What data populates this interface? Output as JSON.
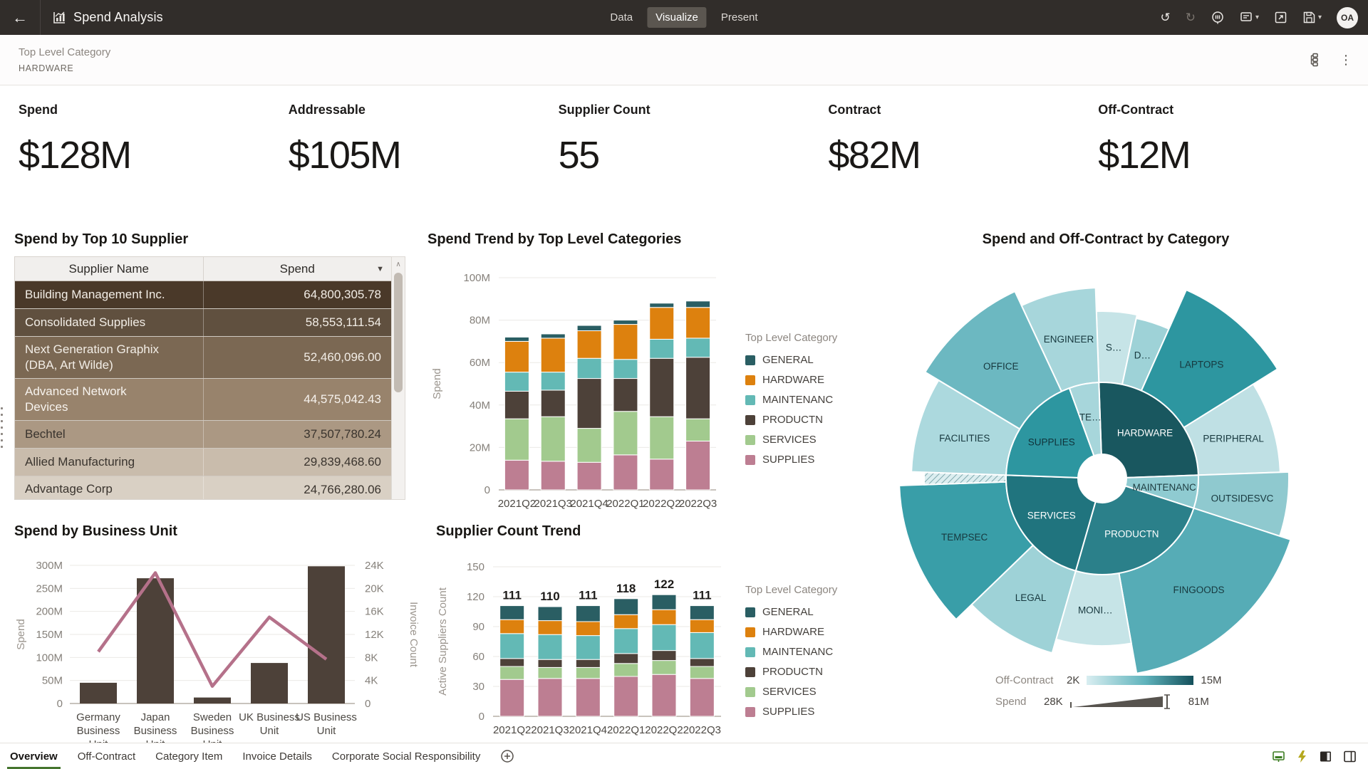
{
  "topbar": {
    "title": "Spend Analysis",
    "tabs": [
      {
        "label": "Data",
        "active": false
      },
      {
        "label": "Visualize",
        "active": true
      },
      {
        "label": "Present",
        "active": false
      }
    ],
    "avatar": "OA"
  },
  "icons": {
    "back": "←",
    "undo": "↺",
    "redo": "↻",
    "caret_down": "▾",
    "kebab": "⋮",
    "sort_desc": "▼",
    "scroll_up": "∧"
  },
  "filterbar": {
    "label": "Top Level Category",
    "value": "HARDWARE"
  },
  "kpis": [
    {
      "label": "Spend",
      "value": "$128M"
    },
    {
      "label": "Addressable",
      "value": "$105M"
    },
    {
      "label": "Supplier Count",
      "value": "55"
    },
    {
      "label": "Contract",
      "value": "$82M"
    },
    {
      "label": "Off-Contract",
      "value": "$12M"
    }
  ],
  "supplier_table": {
    "title": "Spend by Top 10 Supplier",
    "columns": [
      "Supplier Name",
      "Spend"
    ],
    "rows": [
      {
        "name": "Building Management Inc.",
        "spend": "64,800,305.78",
        "bg": "#4A3929",
        "fg": "#F2EDE6",
        "h": 39
      },
      {
        "name": "Consolidated Supplies",
        "spend": "58,553,111.54",
        "bg": "#60503F",
        "fg": "#F2EDE6",
        "h": 39
      },
      {
        "name": "Next Generation Graphix\n(DBA, Art Wilde)",
        "spend": "52,460,096.00",
        "bg": "#7B6853",
        "fg": "#F2EDE6",
        "h": 59
      },
      {
        "name": "Advanced Network\nDevices",
        "spend": "44,575,042.43",
        "bg": "#98836C",
        "fg": "#F7F3EE",
        "h": 59
      },
      {
        "name": "Bechtel",
        "spend": "37,507,780.24",
        "bg": "#AB9883",
        "fg": "#3A342E",
        "h": 39
      },
      {
        "name": "Allied Manufacturing",
        "spend": "29,839,468.60",
        "bg": "#C9BCAC",
        "fg": "#3A342E",
        "h": 39
      },
      {
        "name": "Advantage Corp",
        "spend": "24,766,280.06",
        "bg": "#D9D0C4",
        "fg": "#3A342E",
        "h": 38
      }
    ]
  },
  "category_legend": {
    "title": "Top Level Category",
    "items": [
      {
        "label": "GENERAL",
        "color": "#2A5E63"
      },
      {
        "label": "HARDWARE",
        "color": "#DD810E"
      },
      {
        "label": "MAINTENANC",
        "color": "#63B9B5"
      },
      {
        "label": "PRODUCTN",
        "color": "#4D4139"
      },
      {
        "label": "SERVICES",
        "color": "#A2CA8E"
      },
      {
        "label": "SUPPLIES",
        "color": "#BD7E92"
      }
    ]
  },
  "chart_data": [
    {
      "id": "spend_trend",
      "type": "stacked-bar",
      "title": "Spend Trend by Top Level Categories",
      "categories": [
        "2021Q2",
        "2021Q3",
        "2021Q4",
        "2022Q1",
        "2022Q2",
        "2022Q3"
      ],
      "series": [
        {
          "name": "SUPPLIES",
          "color": "#BD7E92",
          "values": [
            14,
            13.5,
            13,
            16.5,
            14.5,
            23
          ]
        },
        {
          "name": "SERVICES",
          "color": "#A2CA8E",
          "values": [
            19.5,
            21,
            16,
            20.5,
            20,
            10.5
          ]
        },
        {
          "name": "PRODUCTN",
          "color": "#4D4139",
          "values": [
            13,
            12.5,
            23.5,
            15.5,
            27.5,
            29
          ]
        },
        {
          "name": "MAINTENANC",
          "color": "#63B9B5",
          "values": [
            9,
            8.5,
            9.5,
            9,
            9,
            9
          ]
        },
        {
          "name": "HARDWARE",
          "color": "#DD810E",
          "values": [
            14.5,
            16,
            13,
            16.5,
            15,
            14.5
          ]
        },
        {
          "name": "GENERAL",
          "color": "#2A5E63",
          "values": [
            2,
            2,
            2.5,
            2,
            2,
            3
          ]
        }
      ],
      "ylabel": "Spend",
      "ylim": [
        0,
        100
      ],
      "yticks": [
        "0",
        "20M",
        "40M",
        "60M",
        "80M",
        "100M"
      ],
      "legend_position": "right",
      "grid": true
    },
    {
      "id": "supplier_count",
      "type": "stacked-bar",
      "title": "Supplier Count Trend",
      "categories": [
        "2021Q2",
        "2021Q3",
        "2021Q4",
        "2022Q1",
        "2022Q2",
        "2022Q3"
      ],
      "totals": [
        111,
        110,
        111,
        118,
        122,
        111
      ],
      "series": [
        {
          "name": "SUPPLIES",
          "color": "#BD7E92",
          "values": [
            37,
            38,
            38,
            40,
            42,
            38
          ]
        },
        {
          "name": "SERVICES",
          "color": "#A2CA8E",
          "values": [
            13,
            11,
            11,
            13,
            14,
            12
          ]
        },
        {
          "name": "PRODUCTN",
          "color": "#4D4139",
          "values": [
            8,
            8,
            8,
            10,
            10,
            8
          ]
        },
        {
          "name": "MAINTENANC",
          "color": "#63B9B5",
          "values": [
            25,
            25,
            24,
            25,
            26,
            26
          ]
        },
        {
          "name": "HARDWARE",
          "color": "#DD810E",
          "values": [
            14,
            14,
            14,
            14,
            15,
            13
          ]
        },
        {
          "name": "GENERAL",
          "color": "#2A5E63",
          "values": [
            14,
            14,
            16,
            16,
            15,
            14
          ]
        }
      ],
      "ylabel": "Active Suppliers Count",
      "ylim": [
        0,
        150
      ],
      "yticks": [
        "0",
        "30",
        "60",
        "90",
        "120",
        "150"
      ],
      "legend_position": "right",
      "grid": true
    },
    {
      "id": "business_unit",
      "type": "combo",
      "title": "Spend by Business Unit",
      "categories": [
        [
          "Germany",
          "Business",
          "Unit"
        ],
        [
          "Japan",
          "Business",
          "Unit"
        ],
        [
          "Sweden",
          "Business",
          "Unit"
        ],
        [
          "UK Business",
          "Unit"
        ],
        [
          "US Business",
          "Unit"
        ]
      ],
      "bars": {
        "name": "Spend",
        "color": "#4D4139",
        "values": [
          45,
          272,
          13,
          88,
          298
        ],
        "ylim": [
          0,
          300
        ],
        "yticks": [
          "0",
          "50M",
          "100M",
          "150M",
          "200M",
          "250M",
          "300M"
        ],
        "ylabel": "Spend"
      },
      "line": {
        "name": "Invoice Count",
        "color": "#B5718A",
        "values": [
          9,
          22.7,
          3,
          15,
          7.7
        ],
        "ylim": [
          0,
          24
        ],
        "yticks": [
          "0",
          "4K",
          "8K",
          "12K",
          "16K",
          "20K",
          "24K"
        ],
        "ylabel": "Invoice Count"
      },
      "grid": true
    },
    {
      "id": "sunburst",
      "type": "sunburst",
      "title": "Spend and Off-Contract by Category",
      "inner": [
        {
          "label": "HARDWARE",
          "a0": -2,
          "a1": 88,
          "fill": "#19575F",
          "tc": "#FFFFFF"
        },
        {
          "label": "MAINTENANC",
          "a0": 88,
          "a1": 108,
          "fill": "#8FCBD1",
          "tc": "#1E3C40"
        },
        {
          "label": "PRODUCTN",
          "a0": 108,
          "a1": 196,
          "fill": "#2B808A",
          "tc": "#FFFFFF"
        },
        {
          "label": "SERVICES",
          "a0": 196,
          "a1": 272,
          "fill": "#20747E",
          "tc": "#FFFFFF"
        },
        {
          "label": "SUPPLIES",
          "a0": 272,
          "a1": 340,
          "fill": "#2D96A0",
          "tc": "#10333A"
        },
        {
          "label": "TE…",
          "a0": 340,
          "a1": 358,
          "fill": "#A7D6DB",
          "tc": "#1E3C40"
        }
      ],
      "outer": [
        {
          "label": "S…",
          "a0": -2,
          "a1": 12,
          "r": 235,
          "fill": "#C6E4E7"
        },
        {
          "label": "D…",
          "a0": 12,
          "a1": 24,
          "r": 230,
          "fill": "#9ED2D7"
        },
        {
          "label": "LAPTOPS",
          "a0": 24,
          "a1": 58,
          "r": 290,
          "fill": "#2D96A0"
        },
        {
          "label": "PERIPHERAL",
          "a0": 58,
          "a1": 88,
          "r": 250,
          "fill": "#BFE0E4"
        },
        {
          "label": "OUTSIDESVC",
          "a0": 88,
          "a1": 108,
          "r": 262,
          "fill": "#8FC9CF"
        },
        {
          "label": "FINGOODS",
          "a0": 108,
          "a1": 170,
          "r": 278,
          "fill": "#56ACB6"
        },
        {
          "label": "MONI…",
          "a0": 170,
          "a1": 196,
          "r": 235,
          "fill": "#C6E4E7"
        },
        {
          "label": "LEGAL",
          "a0": 196,
          "a1": 226,
          "r": 255,
          "fill": "#9ED2D7"
        },
        {
          "label": "TEMPSEC",
          "a0": 226,
          "a1": 268,
          "r": 285,
          "fill": "#399EA8"
        },
        {
          "label": "",
          "a0": 268,
          "a1": 272,
          "r": 250,
          "fill": "hatch"
        },
        {
          "label": "FACILITIES",
          "a0": 272,
          "a1": 301,
          "r": 268,
          "fill": "#ACD9DE"
        },
        {
          "label": "OFFICE",
          "a0": 301,
          "a1": 335,
          "r": 290,
          "fill": "#6CB8C1"
        },
        {
          "label": "ENGINEER",
          "a0": 335,
          "a1": 358,
          "r": 268,
          "fill": "#A7D6DB"
        }
      ],
      "size_legend": {
        "offcontract": {
          "label": "Off-Contract",
          "min": "2K",
          "max": "15M",
          "from": "#D9EEF1",
          "mid": "#5FB3BC",
          "to": "#14505B"
        },
        "spend": {
          "label": "Spend",
          "min": "28K",
          "max": "81M",
          "color": "#57534E"
        }
      }
    }
  ],
  "tabbar": {
    "tabs": [
      {
        "label": "Overview",
        "active": true
      },
      {
        "label": "Off-Contract",
        "active": false
      },
      {
        "label": "Category Item",
        "active": false
      },
      {
        "label": "Invoice Details",
        "active": false
      },
      {
        "label": "Corporate Social Responsibility",
        "active": false
      }
    ]
  }
}
